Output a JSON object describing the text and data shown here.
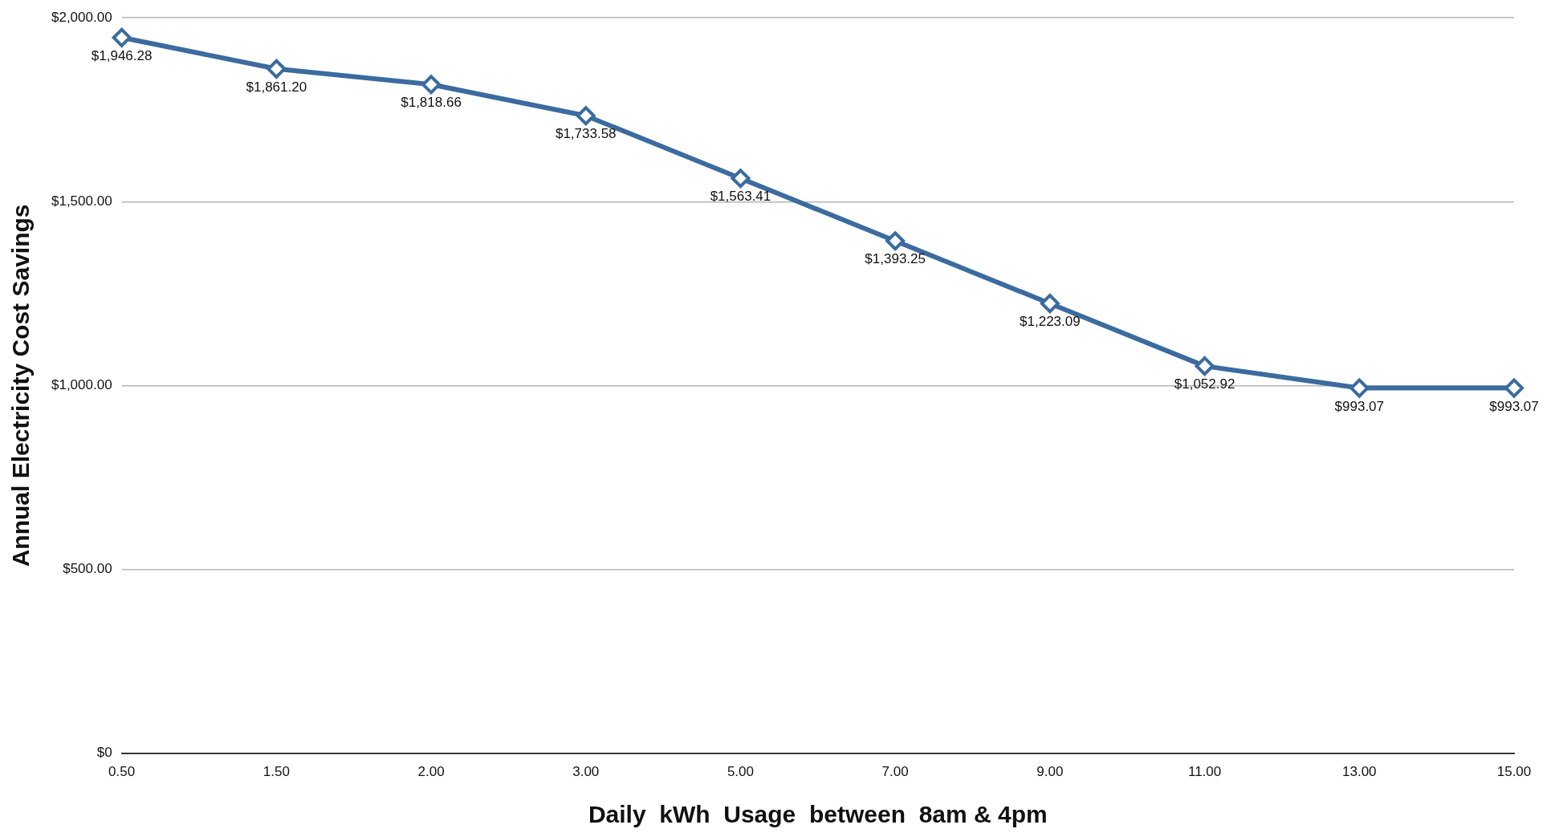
{
  "chart_data": {
    "type": "line",
    "xlabel": "Daily  kWh  Usage  between  8am & 4pm",
    "ylabel": "Annual Electricity Cost Savings",
    "categories": [
      "0.50",
      "1.50",
      "2.00",
      "3.00",
      "5.00",
      "7.00",
      "9.00",
      "11.00",
      "13.00",
      "15.00"
    ],
    "series": [
      {
        "color": "#3b6b9f",
        "values": [
          1946.28,
          1861.2,
          1818.66,
          1733.58,
          1563.41,
          1393.25,
          1223.09,
          1052.92,
          993.07,
          993.07
        ],
        "value_labels": [
          "$1,946.28",
          "$1,861.20",
          "$1,818.66",
          "$1,733.58",
          "$1,563.41",
          "$1,393.25",
          "$1,223.09",
          "$1,052.92",
          "$993.07",
          "$993.07"
        ]
      }
    ],
    "ylim": [
      0,
      2000
    ],
    "yticks": [
      {
        "value": 0,
        "label": "$0"
      },
      {
        "value": 500,
        "label": "$500.00"
      },
      {
        "value": 1000,
        "label": "$1,000.00"
      },
      {
        "value": 1500,
        "label": "$1,500.00"
      },
      {
        "value": 2000,
        "label": "$2,000.00"
      }
    ],
    "grid": "y",
    "legend": false,
    "marker": "diamond",
    "line_style": "solid"
  }
}
